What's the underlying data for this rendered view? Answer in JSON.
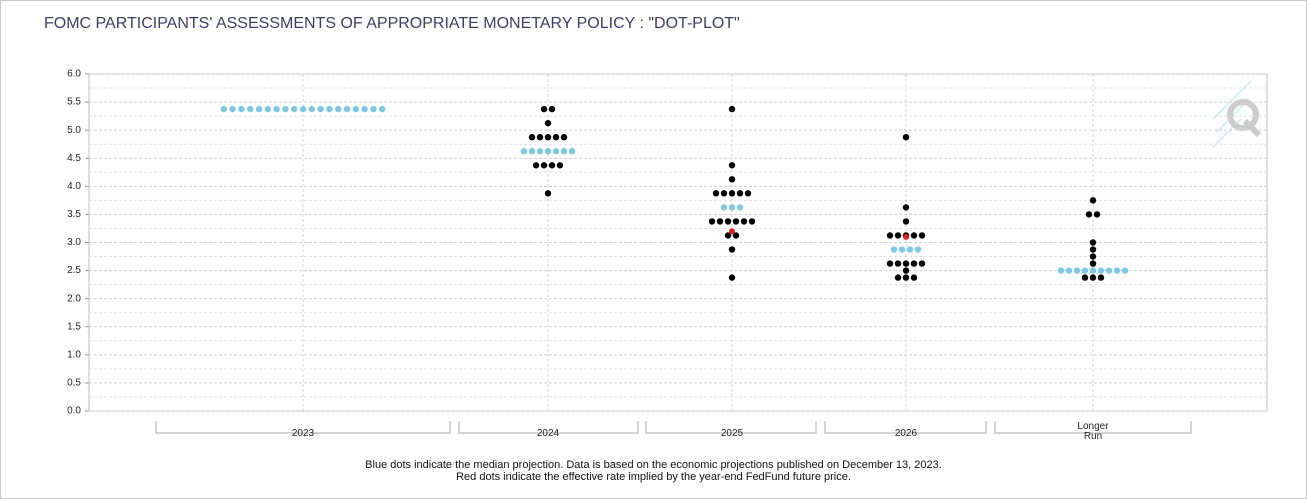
{
  "chart_data": {
    "type": "dot",
    "title": "FOMC PARTICIPANTS' ASSESSMENTS OF APPROPRIATE MONETARY POLICY : \"DOT-PLOT\"",
    "notes": [
      "Blue dots indicate the median projection. Data is based on the economic projections published on December 13, 2023.",
      "Red dots indicate the effective rate implied by the year-end FedFund future price."
    ],
    "categories": [
      "2023",
      "2024",
      "2025",
      "2026",
      "Longer Run"
    ],
    "ylim": [
      0,
      6
    ],
    "yticks": [
      {
        "value": 0,
        "label": "0.0"
      },
      0.5,
      {
        "value": 1,
        "label": "1.0"
      },
      1.5,
      {
        "value": 2,
        "label": "2.0"
      },
      2.5,
      {
        "value": 3,
        "label": "3.0"
      },
      3.5,
      {
        "value": 4,
        "label": "4.0"
      },
      4.5,
      {
        "value": 5,
        "label": "5.0"
      },
      5.5,
      {
        "value": 6,
        "label": "6.0"
      }
    ],
    "grid": true,
    "series": [
      {
        "color": "#000000",
        "values": [
          [],
          [
            5.375,
            5.375,
            5.125,
            4.875,
            4.875,
            4.875,
            4.875,
            4.875,
            4.375,
            4.375,
            4.375,
            4.375,
            3.875
          ],
          [
            5.375,
            4.375,
            4.125,
            3.875,
            3.875,
            3.875,
            3.875,
            3.875,
            3.375,
            3.375,
            3.375,
            3.375,
            3.375,
            3.375,
            3.125,
            3.125,
            2.875,
            2.375
          ],
          [
            4.875,
            3.625,
            3.375,
            3.125,
            3.125,
            3.125,
            3.125,
            3.125,
            2.625,
            2.625,
            2.625,
            2.625,
            2.625,
            2.5,
            2.375,
            2.375,
            2.375
          ],
          [
            3.75,
            3.5,
            3.5,
            3.0,
            2.875,
            2.75,
            2.625,
            2.375,
            2.375,
            2.375
          ]
        ]
      },
      {
        "color": "#7ec8e3",
        "values": [
          [
            5.375,
            5.375,
            5.375,
            5.375,
            5.375,
            5.375,
            5.375,
            5.375,
            5.375,
            5.375,
            5.375,
            5.375,
            5.375,
            5.375,
            5.375,
            5.375,
            5.375,
            5.375,
            5.375
          ],
          [
            4.625,
            4.625,
            4.625,
            4.625,
            4.625,
            4.625,
            4.625
          ],
          [
            3.625,
            3.625,
            3.625
          ],
          [
            2.875,
            2.875,
            2.875,
            2.875
          ],
          [
            2.5,
            2.5,
            2.5,
            2.5,
            2.5,
            2.5,
            2.5,
            2.5,
            2.5
          ]
        ]
      },
      {
        "color": "#e02020",
        "values": [
          [],
          [],
          [
            3.2
          ],
          [
            3.1
          ],
          []
        ]
      }
    ]
  }
}
